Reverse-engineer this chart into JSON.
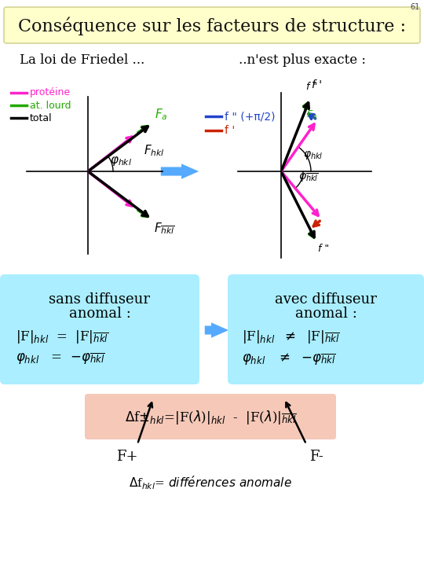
{
  "title": "Conséquence sur les facteurs de structure :",
  "slide_num": "61",
  "bg_color": "#ffffff",
  "title_bg": "#ffffcc",
  "label_friedel": "La loi de Friedel ...",
  "label_not_exact": "..n'est plus exacte :",
  "legend_proteine": "protéine",
  "legend_atlourd": "at. lourd",
  "legend_total": "total",
  "color_proteine": "#ff22cc",
  "color_atlourd": "#22aa00",
  "color_total": "#000000",
  "color_fprimeprime": "#2244cc",
  "color_fprime": "#cc2200",
  "arrow_color": "#55aaff",
  "box_color": "#aaeeff",
  "pink_box_color": "#f5c8b8"
}
